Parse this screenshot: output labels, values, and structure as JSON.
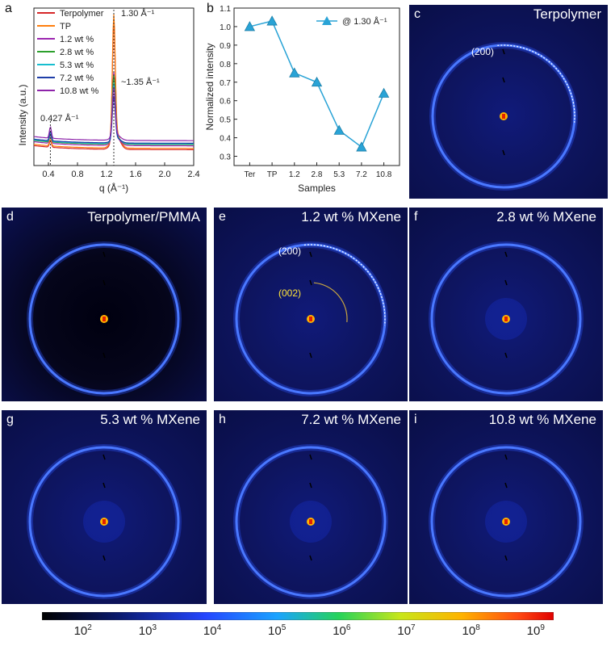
{
  "panels": {
    "a": "a",
    "b": "b",
    "c": "c",
    "d": "d",
    "e": "e",
    "f": "f",
    "g": "g",
    "h": "h",
    "i": "i"
  },
  "chart_data": [
    {
      "type": "line",
      "panel": "a",
      "xlabel": "q (Å⁻¹)",
      "ylabel": "Intensity (a.u.)",
      "xlim": [
        0.2,
        2.4
      ],
      "xticks": [
        "0.4",
        "0.8",
        "1.2",
        "1.6",
        "2.0",
        "2.4"
      ],
      "grid": false,
      "legend_position": "top-left",
      "annotations": [
        "1.30 Å⁻¹",
        "~1.35 Å⁻¹",
        "0.427 Å⁻¹"
      ],
      "series": [
        {
          "name": "Terpolymer",
          "color": "#d62728",
          "baseline": 0.12,
          "peak": 0.95,
          "sidepeak": 0.04
        },
        {
          "name": "TP",
          "color": "#ff7f0e",
          "baseline": 0.14,
          "peak": 1.0,
          "sidepeak": 0.04
        },
        {
          "name": "1.2 wt %",
          "color": "#9c27b0",
          "baseline": 0.18,
          "peak": 0.55,
          "sidepeak": 0.05
        },
        {
          "name": "2.8 wt %",
          "color": "#2ca02c",
          "baseline": 0.2,
          "peak": 0.52,
          "sidepeak": 0.05
        },
        {
          "name": "5.3 wt %",
          "color": "#17becf",
          "baseline": 0.21,
          "peak": 0.45,
          "sidepeak": 0.06
        },
        {
          "name": "7.2 wt %",
          "color": "#1f3ea8",
          "baseline": 0.22,
          "peak": 0.35,
          "sidepeak": 0.06
        },
        {
          "name": "10.8 wt %",
          "color": "#8e24aa",
          "baseline": 0.26,
          "peak": 0.4,
          "sidepeak": 0.07
        }
      ]
    },
    {
      "type": "line",
      "panel": "b",
      "xlabel": "Samples",
      "ylabel": "Normalized intensity",
      "categories": [
        "Ter",
        "TP",
        "1.2",
        "2.8",
        "5.3",
        "7.2",
        "10.8"
      ],
      "ylim": [
        0.25,
        1.1
      ],
      "yticks": [
        "0.3",
        "0.4",
        "0.5",
        "0.6",
        "0.7",
        "0.8",
        "0.9",
        "1.0",
        "1.1"
      ],
      "grid": false,
      "legend_position": "top-right",
      "series": [
        {
          "name": "@ 1.30 Å⁻¹",
          "color": "#29a3d6",
          "values": [
            1.0,
            1.03,
            0.75,
            0.7,
            0.44,
            0.35,
            0.64
          ]
        }
      ]
    }
  ],
  "saxs": [
    {
      "id": "c",
      "letter": "c",
      "title": "Terpolymer",
      "inner_ring": false,
      "arc200": "(200)",
      "arc002": ""
    },
    {
      "id": "d",
      "letter": "d",
      "title": "Terpolymer/PMMA",
      "inner_ring": false,
      "arc200": "",
      "arc002": ""
    },
    {
      "id": "e",
      "letter": "e",
      "title": "1.2 wt % MXene",
      "inner_ring": false,
      "arc200": "(200)",
      "arc002": "(002)"
    },
    {
      "id": "f",
      "letter": "f",
      "title": "2.8 wt % MXene",
      "inner_ring": true,
      "arc200": "",
      "arc002": ""
    },
    {
      "id": "g",
      "letter": "g",
      "title": "5.3 wt % MXene",
      "inner_ring": true,
      "arc200": "",
      "arc002": ""
    },
    {
      "id": "h",
      "letter": "h",
      "title": "7.2 wt % MXene",
      "inner_ring": true,
      "arc200": "",
      "arc002": ""
    },
    {
      "id": "i",
      "letter": "i",
      "title": "10.8 wt % MXene",
      "inner_ring": true,
      "arc200": "",
      "arc002": ""
    }
  ],
  "colorbar": {
    "ticks": [
      "10",
      "10",
      "10",
      "10",
      "10",
      "10",
      "10",
      "10"
    ],
    "exponents": [
      "2",
      "3",
      "4",
      "5",
      "6",
      "7",
      "8",
      "9"
    ]
  }
}
